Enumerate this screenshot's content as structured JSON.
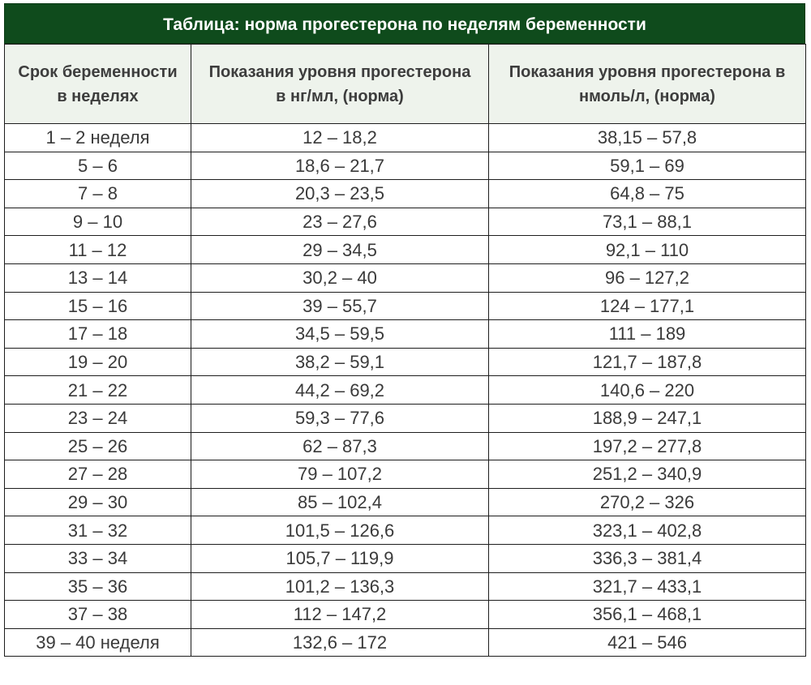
{
  "title": "Таблица: норма прогестерона по неделям беременности",
  "headers": [
    "Срок беременности в неделях",
    "Показания уровня прогестерона в нг/мл, (норма)",
    "Показания уровня прогестерона в нмоль/л, (норма)"
  ],
  "rows": [
    [
      "1 – 2 неделя",
      "12 – 18,2",
      "38,15 – 57,8"
    ],
    [
      "5 – 6",
      "18,6 – 21,7",
      "59,1 – 69"
    ],
    [
      "7 – 8",
      "20,3 – 23,5",
      "64,8 – 75"
    ],
    [
      "9 – 10",
      "23 – 27,6",
      "73,1 – 88,1"
    ],
    [
      "11 – 12",
      "29 – 34,5",
      "92,1 – 110"
    ],
    [
      "13 – 14",
      "30,2 – 40",
      "96 – 127,2"
    ],
    [
      "15 – 16",
      "39 – 55,7",
      "124 – 177,1"
    ],
    [
      "17 – 18",
      "34,5 – 59,5",
      "111 – 189"
    ],
    [
      "19 – 20",
      "38,2 – 59,1",
      "121,7 – 187,8"
    ],
    [
      "21 – 22",
      "44,2 – 69,2",
      "140,6 – 220"
    ],
    [
      "23 – 24",
      "59,3 – 77,6",
      "188,9 – 247,1"
    ],
    [
      "25 – 26",
      "62 – 87,3",
      "197,2 – 277,8"
    ],
    [
      "27 – 28",
      "79 – 107,2",
      "251,2 – 340,9"
    ],
    [
      "29 – 30",
      "85 – 102,4",
      "270,2 – 326"
    ],
    [
      "31 – 32",
      "101,5 – 126,6",
      "323,1 – 402,8"
    ],
    [
      "33 – 34",
      "105,7 – 119,9",
      "336,3 – 381,4"
    ],
    [
      "35 – 36",
      "101,2 – 136,3",
      "321,7 – 433,1"
    ],
    [
      "37 – 38",
      "112 – 147,2",
      "356,1 – 468,1"
    ],
    [
      "39 – 40 неделя",
      "132,6 – 172",
      "421 – 546"
    ]
  ],
  "colors": {
    "title_bg": "#0f4b1c",
    "header_bg": "#eef3ec",
    "border": "#1d1d1d"
  }
}
